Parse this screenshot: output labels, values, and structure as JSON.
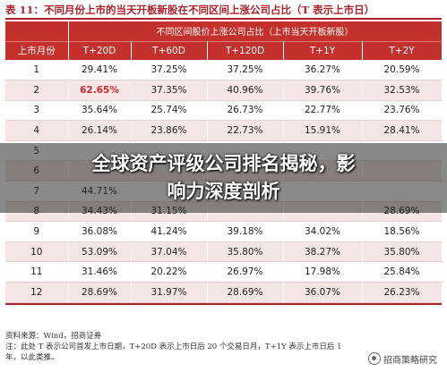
{
  "title": "表 11：不同月份上市的当天开板新股在不同区间上涨公司占比（T 表示上市日）",
  "table": {
    "span_header": "不同区间股价上涨公司占比（上市当天开板新股）",
    "first_col_header": "上市月份",
    "columns": [
      "T+20D",
      "T+60D",
      "T+120D",
      "T+1Y",
      "T+2Y"
    ],
    "rows": [
      {
        "month": "1",
        "values": [
          "29.41%",
          "37.25%",
          "37.25%",
          "36.27%",
          "20.59%"
        ]
      },
      {
        "month": "2",
        "values": [
          "62.65%",
          "37.35%",
          "40.96%",
          "39.76%",
          "32.53%"
        ]
      },
      {
        "month": "3",
        "values": [
          "35.64%",
          "25.74%",
          "26.73%",
          "22.77%",
          "23.76%"
        ]
      },
      {
        "month": "4",
        "values": [
          "26.14%",
          "23.86%",
          "22.73%",
          "15.91%",
          "28.41%"
        ]
      },
      {
        "month": "5",
        "values": [
          "",
          "",
          "",
          "",
          ""
        ]
      },
      {
        "month": "6",
        "values": [
          "",
          "",
          "",
          "",
          ""
        ]
      },
      {
        "month": "7",
        "values": [
          "44.71%",
          "",
          "",
          "",
          ""
        ]
      },
      {
        "month": "8",
        "values": [
          "34.43%",
          "31.15%",
          "",
          "",
          "28.69%"
        ]
      },
      {
        "month": "9",
        "values": [
          "36.08%",
          "41.24%",
          "39.18%",
          "34.02%",
          "18.56%"
        ]
      },
      {
        "month": "10",
        "values": [
          "53.09%",
          "37.04%",
          "35.80%",
          "38.27%",
          "35.80%"
        ]
      },
      {
        "month": "11",
        "values": [
          "31.46%",
          "20.22%",
          "26.97%",
          "17.98%",
          "25.84%"
        ]
      },
      {
        "month": "12",
        "values": [
          "28.69%",
          "31.97%",
          "28.69%",
          "36.07%",
          "26.23%"
        ]
      }
    ]
  },
  "notes": {
    "source": "资料来源：Wind，招商证券",
    "footnote_1": "注：此处 T 表示公司首发上市日期，T+20D 表示上市日后 20 个交易日月，T+1Y 表示上市日后 1",
    "footnote_2": "年，以此类推。"
  },
  "overlay": {
    "line1": "全球资产评级公司排名揭秘，影",
    "line2": "响力深度剖析"
  },
  "watermark": "招商策略研究",
  "highlight_color": "#d0262b"
}
